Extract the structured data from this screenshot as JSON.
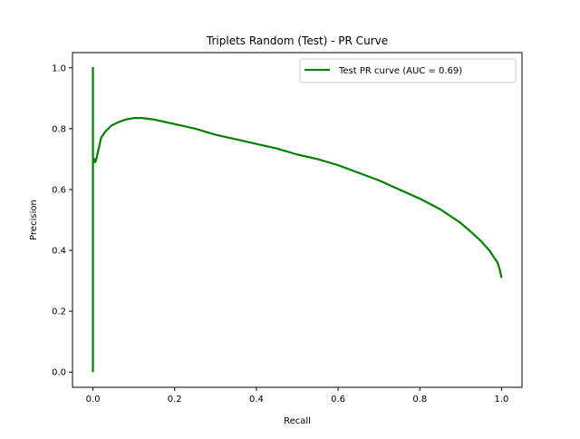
{
  "chart_data": {
    "type": "line",
    "title": "Triplets Random (Test) - PR Curve",
    "xlabel": "Recall",
    "ylabel": "Precision",
    "xlim": [
      -0.05,
      1.05
    ],
    "ylim": [
      -0.05,
      1.05
    ],
    "x_ticks": [
      0.0,
      0.2,
      0.4,
      0.6,
      0.8,
      1.0
    ],
    "x_tick_labels": [
      "0.0",
      "0.2",
      "0.4",
      "0.6",
      "0.8",
      "1.0"
    ],
    "y_ticks": [
      0.0,
      0.2,
      0.4,
      0.6,
      0.8,
      1.0
    ],
    "y_tick_labels": [
      "0.0",
      "0.2",
      "0.4",
      "0.6",
      "0.8",
      "1.0"
    ],
    "grid": false,
    "legend_position": "top-right",
    "series": [
      {
        "name": "Test PR curve (AUC = 0.69)",
        "color": "#008000",
        "x": [
          0.0,
          0.0,
          0.0,
          0.0,
          0.002,
          0.004,
          0.006,
          0.008,
          0.01,
          0.015,
          0.02,
          0.03,
          0.045,
          0.06,
          0.08,
          0.1,
          0.12,
          0.15,
          0.2,
          0.25,
          0.3,
          0.35,
          0.4,
          0.45,
          0.5,
          0.55,
          0.6,
          0.65,
          0.7,
          0.75,
          0.8,
          0.85,
          0.9,
          0.93,
          0.95,
          0.97,
          0.98,
          0.99,
          0.995,
          1.0
        ],
        "y": [
          0.0,
          1.0,
          0.64,
          0.7,
          0.69,
          0.7,
          0.69,
          0.7,
          0.71,
          0.74,
          0.77,
          0.79,
          0.81,
          0.82,
          0.83,
          0.835,
          0.835,
          0.83,
          0.815,
          0.8,
          0.78,
          0.765,
          0.75,
          0.735,
          0.715,
          0.7,
          0.68,
          0.655,
          0.63,
          0.6,
          0.57,
          0.535,
          0.49,
          0.455,
          0.43,
          0.4,
          0.38,
          0.36,
          0.34,
          0.31
        ]
      }
    ]
  }
}
